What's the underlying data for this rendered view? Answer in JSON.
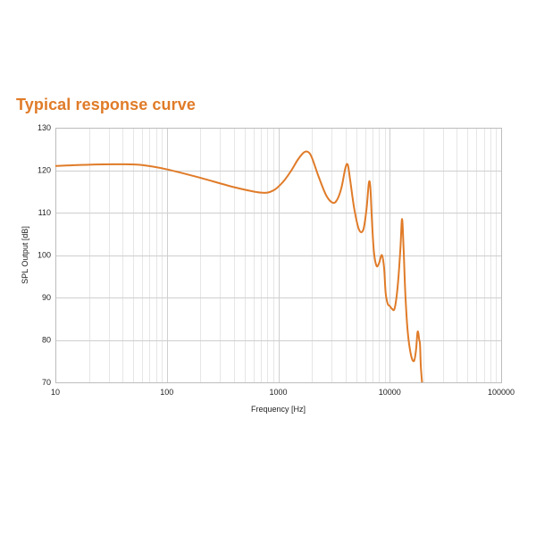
{
  "colors": {
    "title": "#e07b28",
    "curve": "#e07b28",
    "grid_major": "#cfcfcf",
    "grid_minor": "#e6e6e6",
    "frame": "#bdbdbd",
    "text": "#222222"
  },
  "chart_data": {
    "type": "line",
    "title": "Typical response curve",
    "xlabel": "Frequency [Hz]",
    "ylabel": "SPL Output [dB]",
    "xscale": "log",
    "xlim": [
      10,
      100000
    ],
    "ylim": [
      70,
      130
    ],
    "x_ticks": [
      10,
      100,
      1000,
      10000,
      100000
    ],
    "x_tick_labels": [
      "10",
      "100",
      "1000",
      "10000",
      "100000"
    ],
    "y_ticks": [
      70,
      80,
      90,
      100,
      110,
      120,
      130
    ],
    "y_tick_labels": [
      "70",
      "80",
      "90",
      "100",
      "110",
      "120",
      "130"
    ],
    "grid": true,
    "legend": "none",
    "series": [
      {
        "x": [
          10,
          20,
          40,
          60,
          100,
          200,
          400,
          700,
          900,
          1100,
          1300,
          1500,
          1700,
          1850,
          2000,
          2300,
          2700,
          3100,
          3400,
          3700,
          4000,
          4200,
          4400,
          4800,
          5300,
          5800,
          6200,
          6500,
          6700,
          6900,
          7200,
          7600,
          8000,
          8500,
          8900,
          9200,
          9600,
          10000,
          10500,
          11000,
          11500,
          12000,
          12500,
          12900,
          13300,
          13800,
          14500,
          15500,
          16500,
          17200,
          17700,
          18000,
          18400,
          18700,
          19000,
          19500
        ],
        "y": [
          121,
          121.3,
          121.4,
          121.2,
          120.2,
          118.2,
          116,
          114.7,
          115.2,
          117.2,
          119.8,
          122.5,
          124.2,
          124.3,
          123,
          118.5,
          114,
          112.3,
          113.2,
          116,
          120.5,
          121.3,
          118,
          111,
          106,
          106,
          111,
          117,
          116,
          109,
          101,
          97.5,
          98,
          100,
          97,
          91,
          88.5,
          88,
          87.3,
          87.2,
          90,
          95,
          102,
          108.5,
          102,
          91,
          82,
          76.5,
          75,
          77.5,
          81.5,
          81.8,
          80,
          79,
          74,
          70
        ]
      }
    ]
  }
}
